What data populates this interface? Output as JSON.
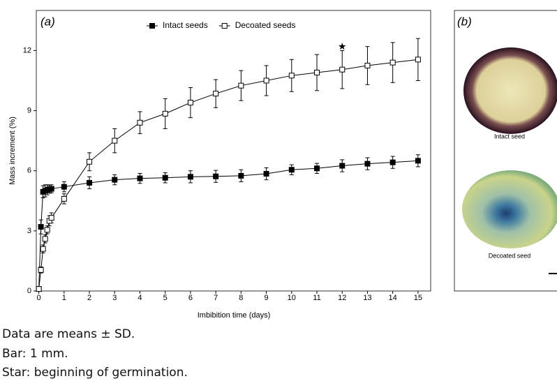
{
  "chart_data": {
    "type": "line",
    "panel_label": "(a)",
    "x_label": "Imbibition time (days)",
    "y_label": "Mass increment (%)",
    "x": [
      0,
      0.083,
      0.167,
      0.25,
      0.333,
      0.417,
      0.5,
      1,
      2,
      3,
      4,
      5,
      6,
      7,
      8,
      9,
      10,
      11,
      12,
      13,
      14,
      15
    ],
    "series": [
      {
        "name": "Intact seeds",
        "color": "#000000",
        "marker": "filled-square",
        "values": [
          0.1,
          3.2,
          4.95,
          5.0,
          5.05,
          5.08,
          5.1,
          5.2,
          5.4,
          5.55,
          5.62,
          5.65,
          5.7,
          5.72,
          5.75,
          5.85,
          6.05,
          6.12,
          6.25,
          6.35,
          6.42,
          6.5
        ],
        "errors": [
          0,
          0.35,
          0.3,
          0.3,
          0.25,
          0.2,
          0.2,
          0.25,
          0.3,
          0.25,
          0.25,
          0.25,
          0.3,
          0.3,
          0.3,
          0.3,
          0.25,
          0.25,
          0.3,
          0.3,
          0.3,
          0.3
        ]
      },
      {
        "name": "Decoated seeds",
        "color": "#000000",
        "marker": "open-square",
        "values": [
          0.1,
          1.05,
          2.1,
          2.6,
          3.05,
          3.5,
          3.65,
          4.6,
          6.45,
          7.5,
          8.4,
          8.85,
          9.4,
          9.85,
          10.25,
          10.5,
          10.75,
          10.9,
          11.05,
          11.25,
          11.4,
          11.55
        ],
        "errors": [
          0,
          0.15,
          0.2,
          0.2,
          0.2,
          0.25,
          0.25,
          0.25,
          0.45,
          0.6,
          0.55,
          0.75,
          0.75,
          0.7,
          0.75,
          0.75,
          0.8,
          0.9,
          0.95,
          0.95,
          1.0,
          1.05
        ]
      }
    ],
    "star_marker": {
      "x": 12,
      "y": 12.2
    },
    "xlim": [
      -0.1,
      15.5
    ],
    "ylim": [
      0,
      14
    ],
    "xticks": [
      0,
      1,
      2,
      3,
      4,
      5,
      6,
      7,
      8,
      9,
      10,
      11,
      12,
      13,
      14,
      15
    ],
    "yticks": [
      0,
      3,
      6,
      9,
      12
    ],
    "legend": "top-center",
    "grid": false
  },
  "photo_panel": {
    "panel_label": "(b)",
    "images": [
      "Intact seed",
      "Decoated seed"
    ]
  },
  "notes": [
    "Data are means ± SD.",
    "Bar: 1 mm.",
    "Star: beginning of germination."
  ]
}
